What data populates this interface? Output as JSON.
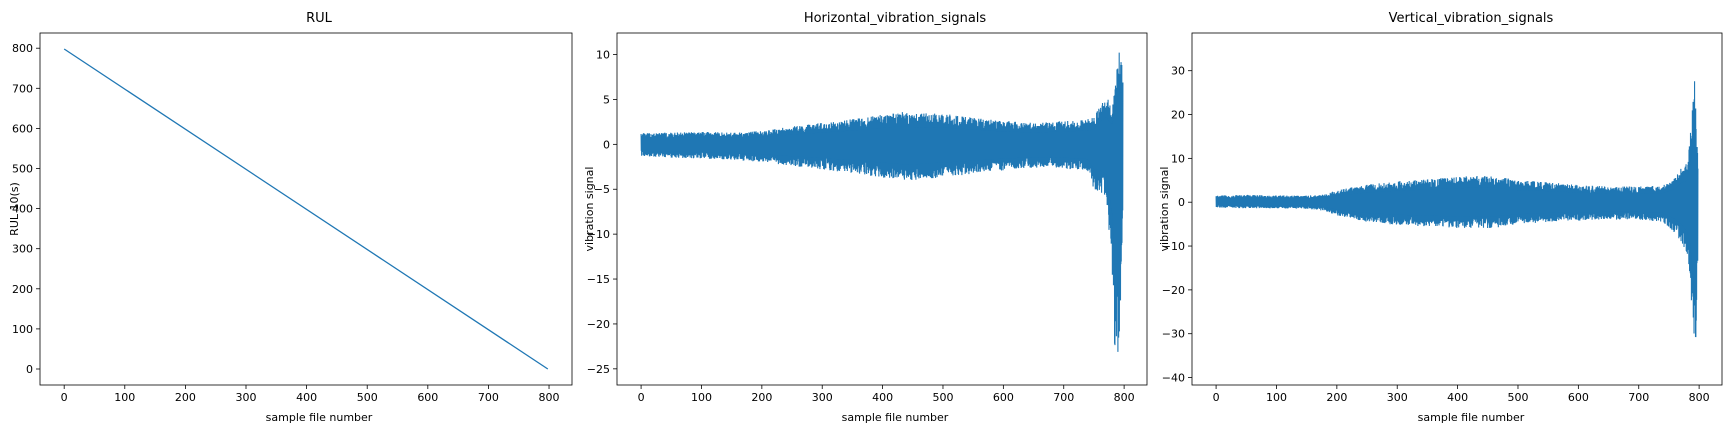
{
  "figure": {
    "background": "#ffffff",
    "line_color": "#1f77b4"
  },
  "chart_data": [
    {
      "type": "line",
      "title": "RUL",
      "xlabel": "sample file number",
      "ylabel": "RUL 10(s)",
      "xlim": [
        -39.9,
        837.9
      ],
      "ylim": [
        -39.9,
        837.9
      ],
      "xticks": [
        0,
        100,
        200,
        300,
        400,
        500,
        600,
        700,
        800
      ],
      "yticks": [
        0,
        100,
        200,
        300,
        400,
        500,
        600,
        700,
        800
      ],
      "grid": false,
      "series": [
        {
          "color": "#1f77b4",
          "x": [
            0,
            798
          ],
          "y": [
            798,
            0
          ]
        }
      ]
    },
    {
      "type": "line",
      "title": "Horizontal_vibration_signals",
      "xlabel": "sample file number",
      "ylabel": "vibration signal",
      "xlim": [
        -39.9,
        837.9
      ],
      "ylim": [
        -26.8,
        12.4
      ],
      "xticks": [
        0,
        100,
        200,
        300,
        400,
        500,
        600,
        700,
        800
      ],
      "yticks": [
        -25,
        -20,
        -15,
        -10,
        -5,
        0,
        5,
        10
      ],
      "grid": false,
      "series": [
        {
          "color": "#1f77b4",
          "envelope": {
            "x": [
              0,
              50,
              100,
              150,
              200,
              250,
              300,
              350,
              400,
              430,
              450,
              480,
              500,
              550,
              600,
              650,
              700,
              740,
              750,
              760,
              770,
              780,
              785,
              790,
              795,
              798
            ],
            "upper": [
              1.3,
              1.3,
              1.4,
              1.3,
              1.5,
              2.0,
              2.4,
              2.8,
              3.3,
              3.7,
              3.4,
              3.5,
              3.4,
              3.0,
              2.6,
              2.4,
              2.6,
              2.8,
              3.0,
              4.5,
              5.5,
              4.0,
              6.5,
              10.0,
              10.7,
              7.0
            ],
            "lower": [
              -1.3,
              -1.5,
              -1.6,
              -1.7,
              -2.0,
              -2.4,
              -2.8,
              -3.2,
              -3.7,
              -4.0,
              -4.1,
              -3.8,
              -3.7,
              -3.3,
              -2.9,
              -2.6,
              -2.7,
              -3.0,
              -5.0,
              -5.3,
              -6.0,
              -14.0,
              -25.1,
              -23.0,
              -20.0,
              -8.0
            ]
          }
        }
      ]
    },
    {
      "type": "line",
      "title": "Vertical_vibration_signals",
      "xlabel": "sample file number",
      "ylabel": "vibration signal",
      "xlim": [
        -39.9,
        837.9
      ],
      "ylim": [
        -41.7,
        38.6
      ],
      "xticks": [
        0,
        100,
        200,
        300,
        400,
        500,
        600,
        700,
        800
      ],
      "yticks": [
        -40,
        -30,
        -20,
        -10,
        0,
        10,
        20,
        30
      ],
      "grid": false,
      "series": [
        {
          "color": "#1f77b4",
          "envelope": {
            "x": [
              0,
              50,
              100,
              150,
              180,
              200,
              250,
              300,
              350,
              400,
              450,
              480,
              500,
              550,
              600,
              650,
              700,
              740,
              760,
              770,
              780,
              785,
              790,
              793,
              796,
              798
            ],
            "upper": [
              1.5,
              1.7,
              1.6,
              1.5,
              1.8,
              2.8,
              4.0,
              4.8,
              5.2,
              5.8,
              6.2,
              5.5,
              5.0,
              4.6,
              4.0,
              3.6,
              3.6,
              3.8,
              5.5,
              8.0,
              9.0,
              15.0,
              24.0,
              34.8,
              20.0,
              10.0
            ],
            "lower": [
              -1.2,
              -1.4,
              -1.4,
              -1.5,
              -2.0,
              -3.0,
              -4.5,
              -5.2,
              -5.6,
              -5.9,
              -6.0,
              -5.5,
              -5.0,
              -4.5,
              -4.2,
              -4.0,
              -4.0,
              -4.5,
              -7.0,
              -9.0,
              -12.0,
              -17.0,
              -30.0,
              -38.0,
              -25.0,
              -12.0
            ]
          }
        }
      ]
    }
  ]
}
